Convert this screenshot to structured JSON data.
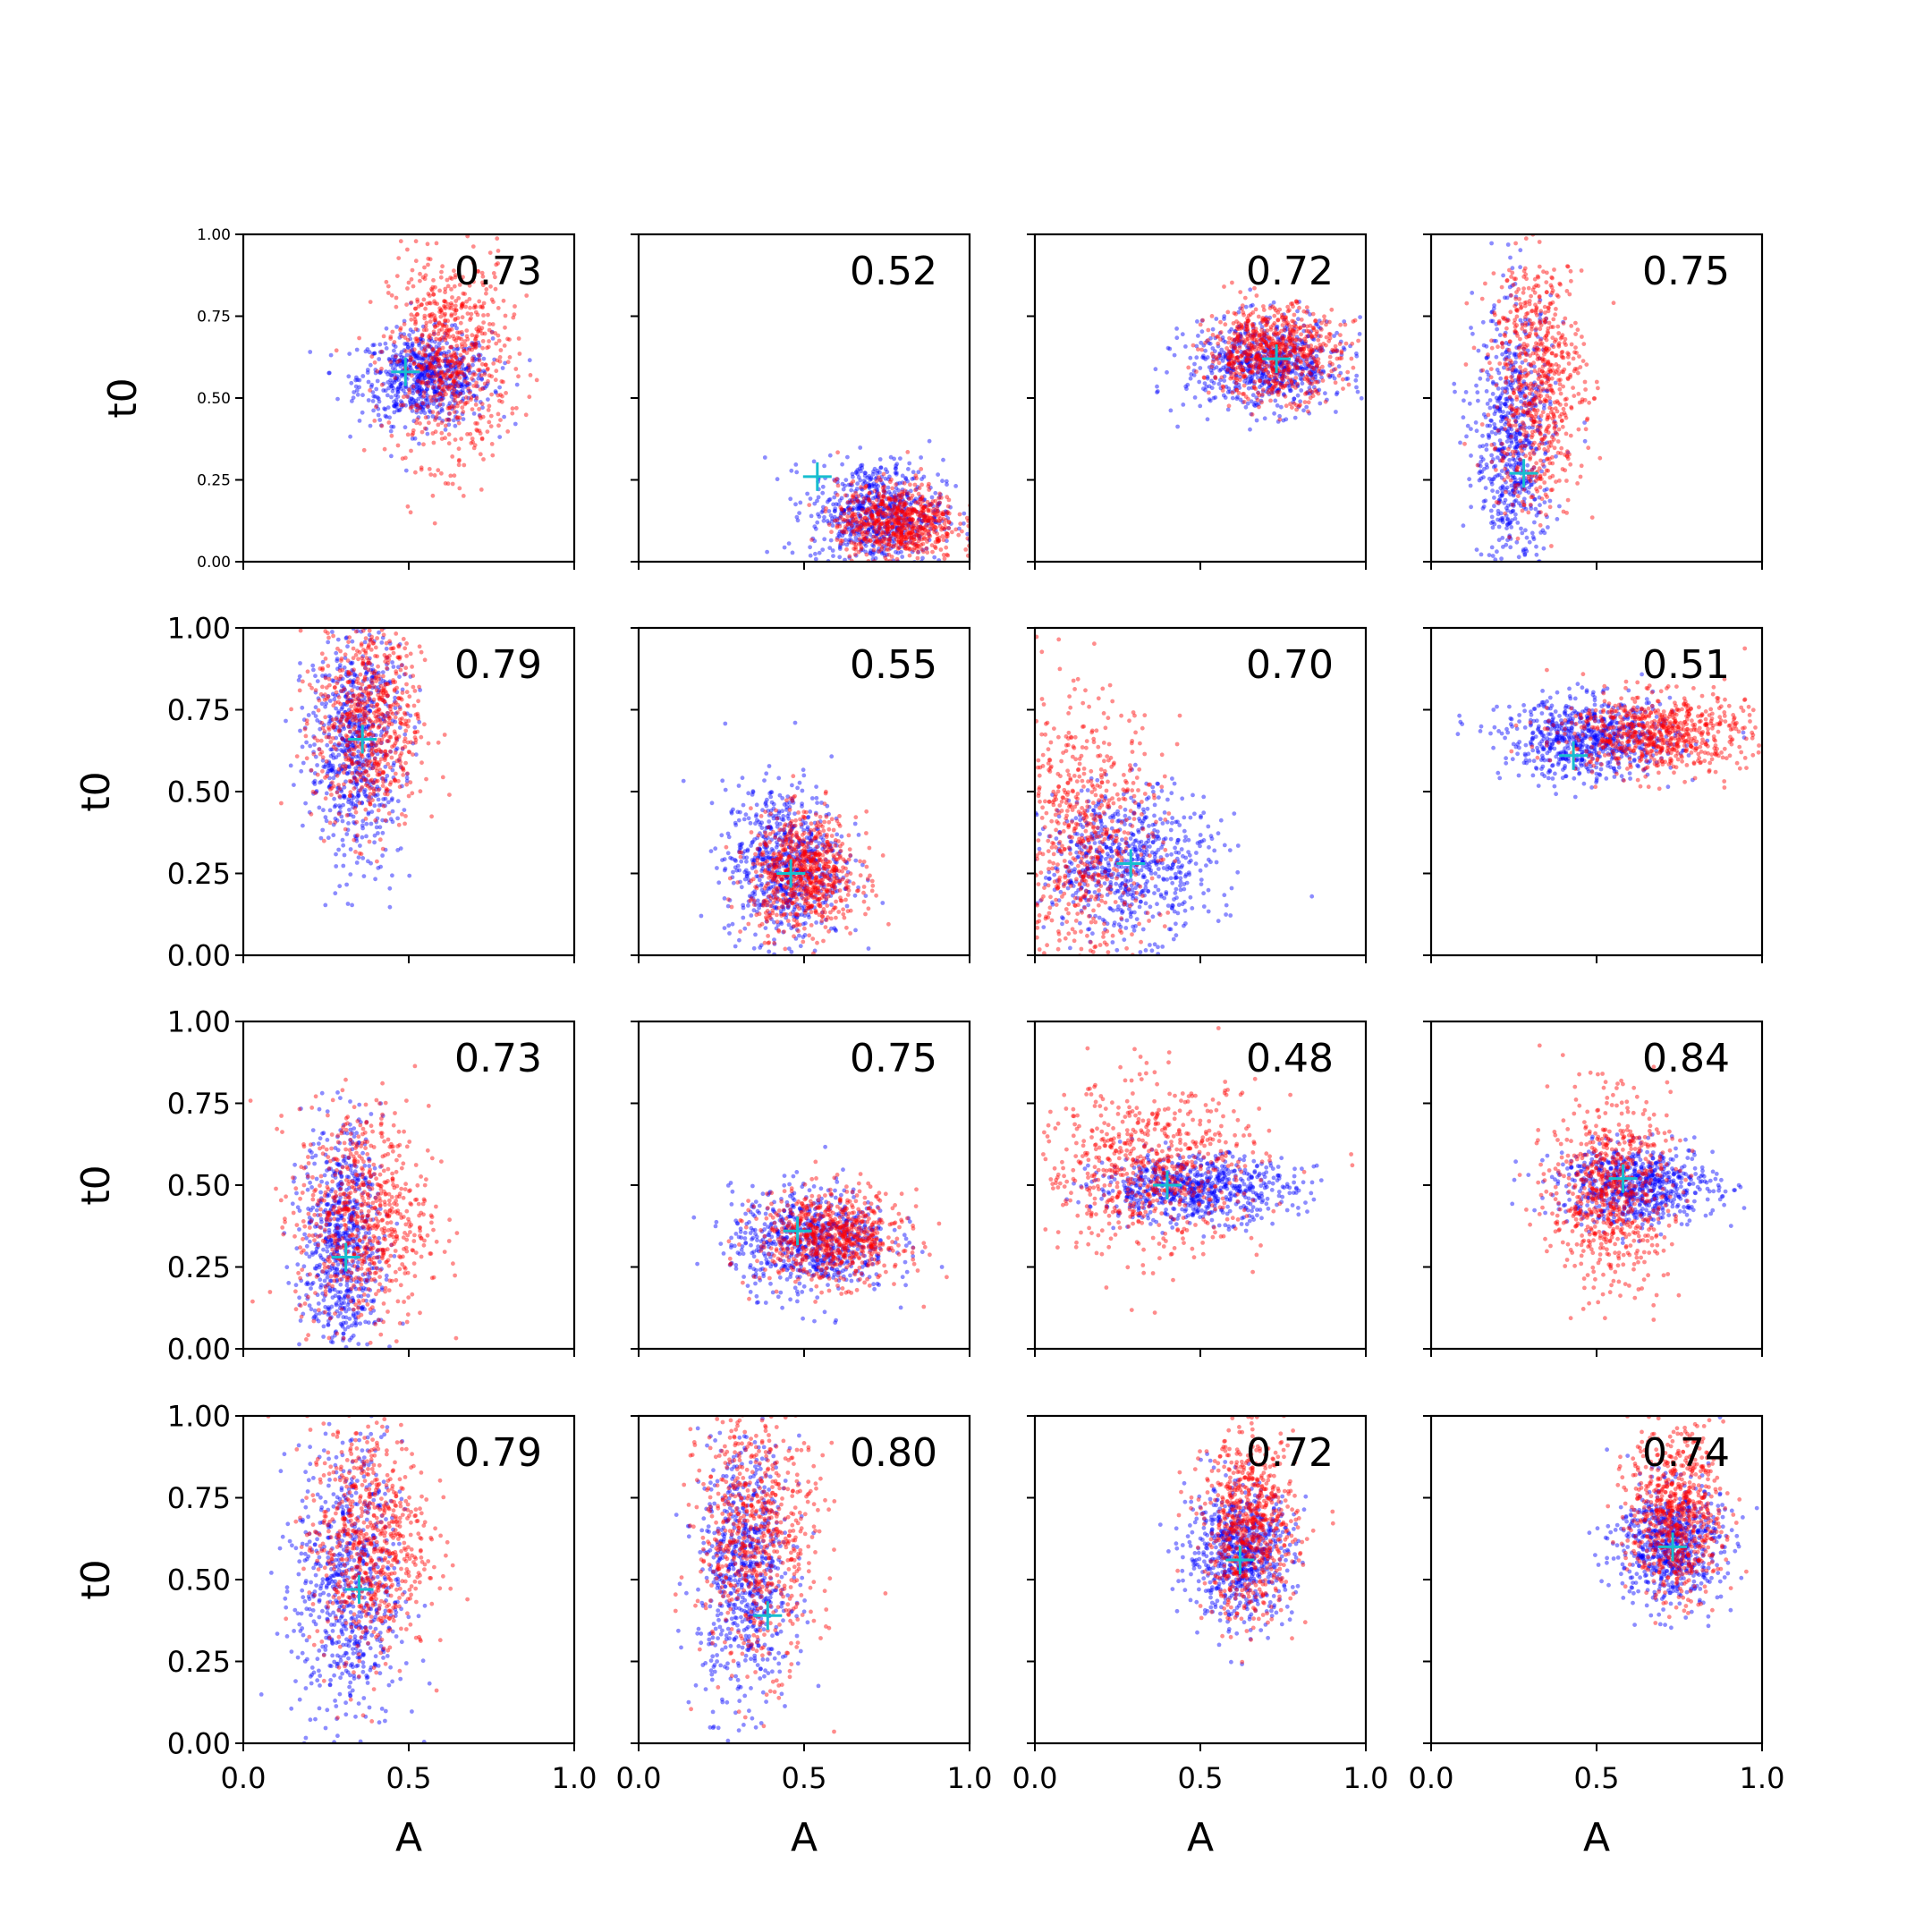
{
  "figure": {
    "xlabel": "A",
    "ylabel": "t0",
    "xticks": [
      "0.0",
      "0.5",
      "1.0"
    ],
    "yticks": [
      "0.00",
      "0.25",
      "0.50",
      "0.75",
      "1.00"
    ]
  },
  "colors": {
    "series_a": "#ff0000",
    "series_b": "#0000ff",
    "marker": "#17becf",
    "axis": "#000000"
  },
  "chart_data": {
    "type": "scatter",
    "layout": "4x4 grid, shared axes",
    "xlim": [
      0,
      1
    ],
    "ylim": [
      0,
      1
    ],
    "series": [
      {
        "color": "blue"
      },
      {
        "color": "red"
      }
    ],
    "panels": [
      {
        "label": "0.73",
        "marker": [
          0.49,
          0.58
        ],
        "blue": {
          "cx": 0.55,
          "cy": 0.56,
          "sx": 0.1,
          "sy": 0.07
        },
        "red": {
          "cx": 0.62,
          "cy": 0.62,
          "sx": 0.09,
          "sy": 0.16
        }
      },
      {
        "label": "0.52",
        "marker": [
          0.54,
          0.26
        ],
        "blue": {
          "cx": 0.72,
          "cy": 0.15,
          "sx": 0.1,
          "sy": 0.08
        },
        "red": {
          "cx": 0.78,
          "cy": 0.12,
          "sx": 0.09,
          "sy": 0.06
        }
      },
      {
        "label": "0.72",
        "marker": [
          0.73,
          0.62
        ],
        "blue": {
          "cx": 0.7,
          "cy": 0.6,
          "sx": 0.12,
          "sy": 0.07
        },
        "red": {
          "cx": 0.72,
          "cy": 0.64,
          "sx": 0.1,
          "sy": 0.07
        }
      },
      {
        "label": "0.75",
        "marker": [
          0.28,
          0.27
        ],
        "blue": {
          "cx": 0.25,
          "cy": 0.35,
          "sx": 0.06,
          "sy": 0.22
        },
        "red": {
          "cx": 0.32,
          "cy": 0.55,
          "sx": 0.07,
          "sy": 0.2
        }
      },
      {
        "label": "0.79",
        "marker": [
          0.36,
          0.66
        ],
        "blue": {
          "cx": 0.34,
          "cy": 0.65,
          "sx": 0.07,
          "sy": 0.18
        },
        "red": {
          "cx": 0.38,
          "cy": 0.72,
          "sx": 0.08,
          "sy": 0.17
        }
      },
      {
        "label": "0.55",
        "marker": [
          0.46,
          0.25
        ],
        "blue": {
          "cx": 0.44,
          "cy": 0.28,
          "sx": 0.09,
          "sy": 0.12
        },
        "red": {
          "cx": 0.5,
          "cy": 0.25,
          "sx": 0.08,
          "sy": 0.09
        }
      },
      {
        "label": "0.70",
        "marker": [
          0.29,
          0.28
        ],
        "blue": {
          "cx": 0.28,
          "cy": 0.28,
          "sx": 0.13,
          "sy": 0.11
        },
        "red": {
          "cx": 0.14,
          "cy": 0.35,
          "sx": 0.12,
          "sy": 0.22
        }
      },
      {
        "label": "0.51",
        "marker": [
          0.43,
          0.61
        ],
        "blue": {
          "cx": 0.48,
          "cy": 0.66,
          "sx": 0.13,
          "sy": 0.06
        },
        "red": {
          "cx": 0.68,
          "cy": 0.68,
          "sx": 0.14,
          "sy": 0.06
        }
      },
      {
        "label": "0.73",
        "marker": [
          0.31,
          0.28
        ],
        "blue": {
          "cx": 0.3,
          "cy": 0.32,
          "sx": 0.06,
          "sy": 0.18
        },
        "red": {
          "cx": 0.36,
          "cy": 0.4,
          "sx": 0.1,
          "sy": 0.17
        }
      },
      {
        "label": "0.75",
        "marker": [
          0.48,
          0.36
        ],
        "blue": {
          "cx": 0.52,
          "cy": 0.33,
          "sx": 0.12,
          "sy": 0.08
        },
        "red": {
          "cx": 0.58,
          "cy": 0.34,
          "sx": 0.11,
          "sy": 0.07
        }
      },
      {
        "label": "0.48",
        "marker": [
          0.4,
          0.5
        ],
        "blue": {
          "cx": 0.48,
          "cy": 0.49,
          "sx": 0.15,
          "sy": 0.05
        },
        "red": {
          "cx": 0.35,
          "cy": 0.55,
          "sx": 0.17,
          "sy": 0.13
        }
      },
      {
        "label": "0.84",
        "marker": [
          0.58,
          0.52
        ],
        "blue": {
          "cx": 0.62,
          "cy": 0.5,
          "sx": 0.12,
          "sy": 0.06
        },
        "red": {
          "cx": 0.54,
          "cy": 0.48,
          "sx": 0.09,
          "sy": 0.14
        }
      },
      {
        "label": "0.79",
        "marker": [
          0.35,
          0.47
        ],
        "blue": {
          "cx": 0.32,
          "cy": 0.48,
          "sx": 0.08,
          "sy": 0.22
        },
        "red": {
          "cx": 0.38,
          "cy": 0.62,
          "sx": 0.09,
          "sy": 0.18
        }
      },
      {
        "label": "0.80",
        "marker": [
          0.39,
          0.39
        ],
        "blue": {
          "cx": 0.32,
          "cy": 0.52,
          "sx": 0.07,
          "sy": 0.2
        },
        "red": {
          "cx": 0.36,
          "cy": 0.64,
          "sx": 0.09,
          "sy": 0.2
        }
      },
      {
        "label": "0.72",
        "marker": [
          0.62,
          0.56
        ],
        "blue": {
          "cx": 0.62,
          "cy": 0.58,
          "sx": 0.08,
          "sy": 0.1
        },
        "red": {
          "cx": 0.65,
          "cy": 0.66,
          "sx": 0.07,
          "sy": 0.14
        }
      },
      {
        "label": "0.74",
        "marker": [
          0.73,
          0.6
        ],
        "blue": {
          "cx": 0.72,
          "cy": 0.61,
          "sx": 0.08,
          "sy": 0.09
        },
        "red": {
          "cx": 0.74,
          "cy": 0.7,
          "sx": 0.07,
          "sy": 0.13
        }
      }
    ]
  }
}
